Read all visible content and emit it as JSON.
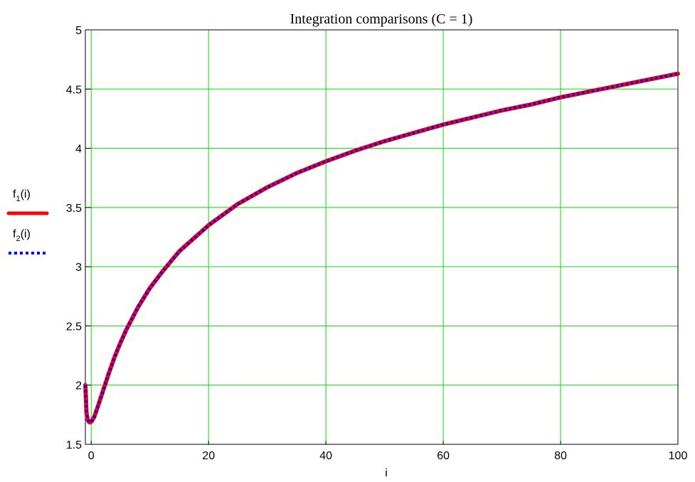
{
  "chart_data": {
    "type": "line",
    "title": "Integration comparisons (C = 1)",
    "xlabel": "i",
    "ylabel": "",
    "xlim": [
      -1,
      100
    ],
    "ylim": [
      1.5,
      5
    ],
    "x_ticks": [
      0,
      20,
      40,
      60,
      80,
      100
    ],
    "y_ticks": [
      1.5,
      2,
      2.5,
      3,
      3.5,
      4,
      4.5,
      5
    ],
    "x_tick_labels": [
      "0",
      "20",
      "40",
      "60",
      "80",
      "100"
    ],
    "y_tick_labels": [
      "1.5",
      "2",
      "2.5",
      "3",
      "3.5",
      "4",
      "4.5",
      "5"
    ],
    "grid": true,
    "grid_color": "#00e000",
    "legend_placement": "left",
    "series": [
      {
        "name": "f1(i)",
        "legend_base": "f",
        "legend_sub": "1",
        "legend_arg": "(i)",
        "color": "#ff0000",
        "style": "solid",
        "x": [
          -1,
          -0.8,
          -0.6,
          -0.4,
          -0.2,
          0,
          0.5,
          1,
          2,
          3,
          4,
          5,
          6,
          8,
          10,
          12,
          15,
          20,
          25,
          30,
          35,
          40,
          45,
          50,
          55,
          60,
          65,
          70,
          75,
          80,
          85,
          90,
          95,
          100
        ],
        "y": [
          2.0,
          1.76,
          1.71,
          1.69,
          1.685,
          1.69,
          1.73,
          1.8,
          1.95,
          2.1,
          2.24,
          2.36,
          2.47,
          2.66,
          2.82,
          2.95,
          3.13,
          3.35,
          3.53,
          3.67,
          3.79,
          3.89,
          3.98,
          4.06,
          4.13,
          4.2,
          4.26,
          4.32,
          4.37,
          4.43,
          4.48,
          4.53,
          4.58,
          4.63
        ]
      },
      {
        "name": "f2(i)",
        "legend_base": "f",
        "legend_sub": "2",
        "legend_arg": "(i)",
        "color": "#0000ff",
        "style": "dotted",
        "x": [
          -1,
          -0.8,
          -0.6,
          -0.4,
          -0.2,
          0,
          0.5,
          1,
          2,
          3,
          4,
          5,
          6,
          8,
          10,
          12,
          15,
          20,
          25,
          30,
          35,
          40,
          45,
          50,
          55,
          60,
          65,
          70,
          75,
          80,
          85,
          90,
          95,
          100
        ],
        "y": [
          2.0,
          1.76,
          1.71,
          1.69,
          1.685,
          1.69,
          1.73,
          1.8,
          1.95,
          2.1,
          2.24,
          2.36,
          2.47,
          2.66,
          2.82,
          2.95,
          3.13,
          3.35,
          3.53,
          3.67,
          3.79,
          3.89,
          3.98,
          4.06,
          4.13,
          4.2,
          4.26,
          4.32,
          4.37,
          4.43,
          4.48,
          4.53,
          4.58,
          4.63
        ]
      }
    ]
  }
}
